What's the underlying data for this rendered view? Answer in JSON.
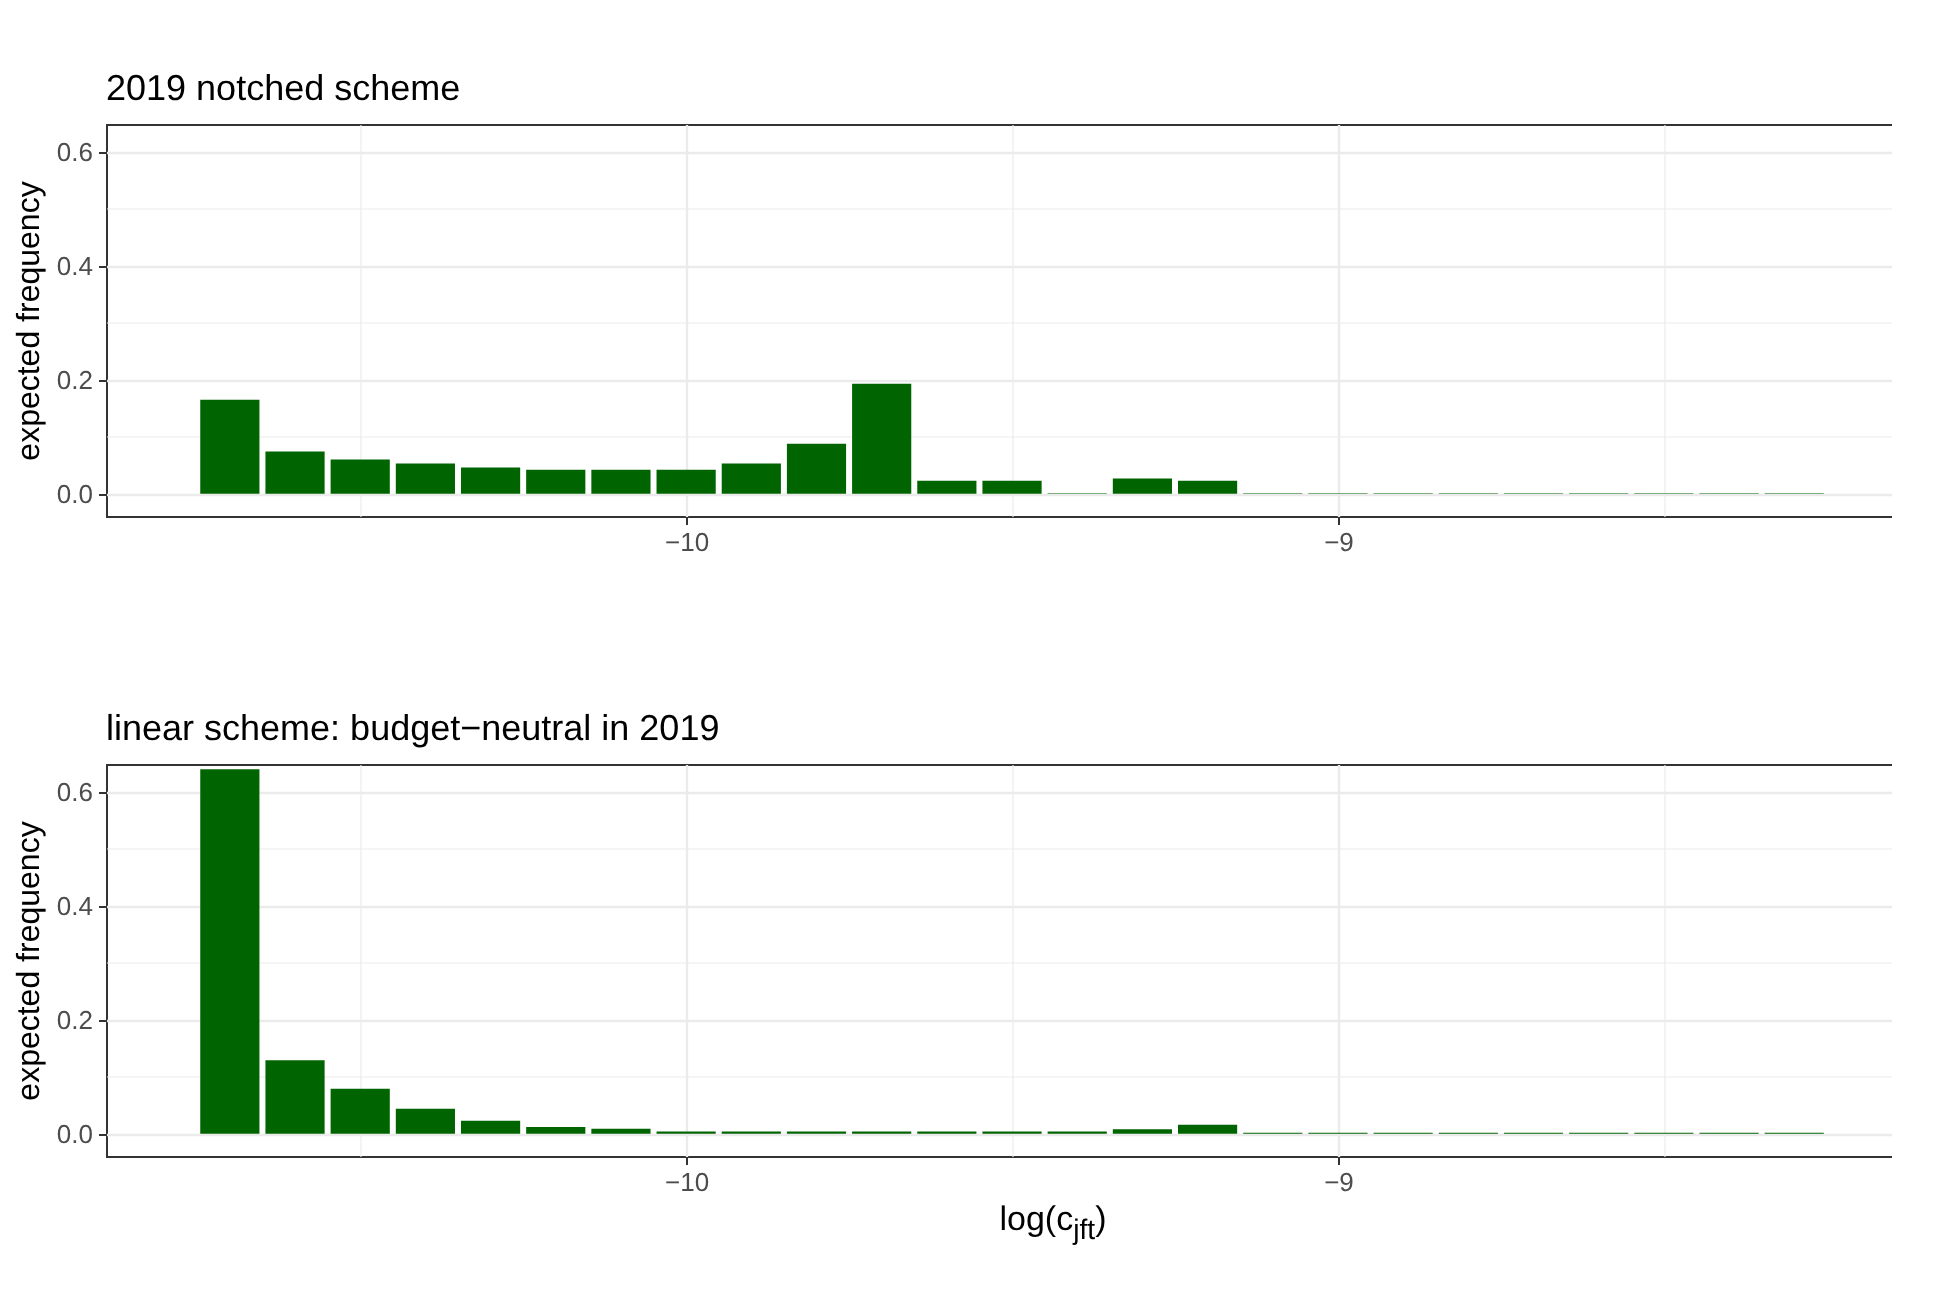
{
  "chart_data": [
    {
      "type": "histogram",
      "title": "2019 notched scheme",
      "ylabel": "expected frequency",
      "color": "#006400",
      "bins": [
        -10.75,
        -10.65,
        -10.55,
        -10.45,
        -10.35,
        -10.25,
        -10.15,
        -10.05,
        -9.95,
        -9.85,
        -9.75,
        -9.65,
        -9.55,
        -9.45,
        -9.35,
        -9.25,
        -9.15,
        -9.05,
        -8.95,
        -8.85,
        -8.75,
        -8.65,
        -8.55,
        -8.45,
        -8.35,
        -8.25
      ],
      "values": [
        0.165,
        0.074,
        0.06,
        0.053,
        0.046,
        0.042,
        0.042,
        0.042,
        0.053,
        0.088,
        0.193,
        0.023,
        0.023,
        0.001,
        0.027,
        0.023,
        0.001,
        0.001,
        0.001,
        0.001,
        0.001,
        0.001,
        0.001,
        0.001,
        0.001
      ],
      "xlim": [
        -10.89,
        -8.15
      ],
      "xticks": [
        {
          "value": -10.5,
          "label": null
        },
        {
          "value": -10,
          "label": "−10"
        },
        {
          "value": -9.5,
          "label": null
        },
        {
          "value": -9,
          "label": "−9"
        },
        {
          "value": -8.5,
          "label": null
        }
      ],
      "ylim": [
        -0.039,
        0.649
      ],
      "yticks": [
        {
          "value": 0,
          "label": "0.0"
        },
        {
          "value": 0.1,
          "label": null
        },
        {
          "value": 0.2,
          "label": "0.2"
        },
        {
          "value": 0.3,
          "label": null
        },
        {
          "value": 0.4,
          "label": "0.4"
        },
        {
          "value": 0.5,
          "label": null
        },
        {
          "value": 0.6,
          "label": "0.6"
        }
      ],
      "grid": true
    },
    {
      "type": "histogram",
      "title": "linear scheme: budget−neutral in 2019",
      "xlabel": "log(c$_{jft}$)",
      "ylabel": "expected frequency",
      "color": "#006400",
      "bins": [
        -10.75,
        -10.65,
        -10.55,
        -10.45,
        -10.35,
        -10.25,
        -10.15,
        -10.05,
        -9.95,
        -9.85,
        -9.75,
        -9.65,
        -9.55,
        -9.45,
        -9.35,
        -9.25,
        -9.15,
        -9.05,
        -8.95,
        -8.85,
        -8.75,
        -8.65,
        -8.55,
        -8.45,
        -8.35,
        -8.25
      ],
      "values": [
        0.64,
        0.129,
        0.079,
        0.044,
        0.023,
        0.012,
        0.009,
        0.004,
        0.004,
        0.004,
        0.004,
        0.004,
        0.004,
        0.004,
        0.008,
        0.016,
        0.002,
        0.002,
        0.002,
        0.002,
        0.002,
        0.002,
        0.002,
        0.002,
        0.002
      ],
      "xlim": [
        -10.89,
        -8.15
      ],
      "xticks": [
        {
          "value": -10.5,
          "label": null
        },
        {
          "value": -10,
          "label": "−10"
        },
        {
          "value": -9.5,
          "label": null
        },
        {
          "value": -9,
          "label": "−9"
        },
        {
          "value": -8.5,
          "label": null
        }
      ],
      "ylim": [
        -0.039,
        0.649
      ],
      "yticks": [
        {
          "value": 0,
          "label": "0.0"
        },
        {
          "value": 0.1,
          "label": null
        },
        {
          "value": 0.2,
          "label": "0.2"
        },
        {
          "value": 0.3,
          "label": null
        },
        {
          "value": 0.4,
          "label": "0.4"
        },
        {
          "value": 0.5,
          "label": null
        },
        {
          "value": 0.6,
          "label": "0.6"
        }
      ],
      "grid": true
    }
  ]
}
